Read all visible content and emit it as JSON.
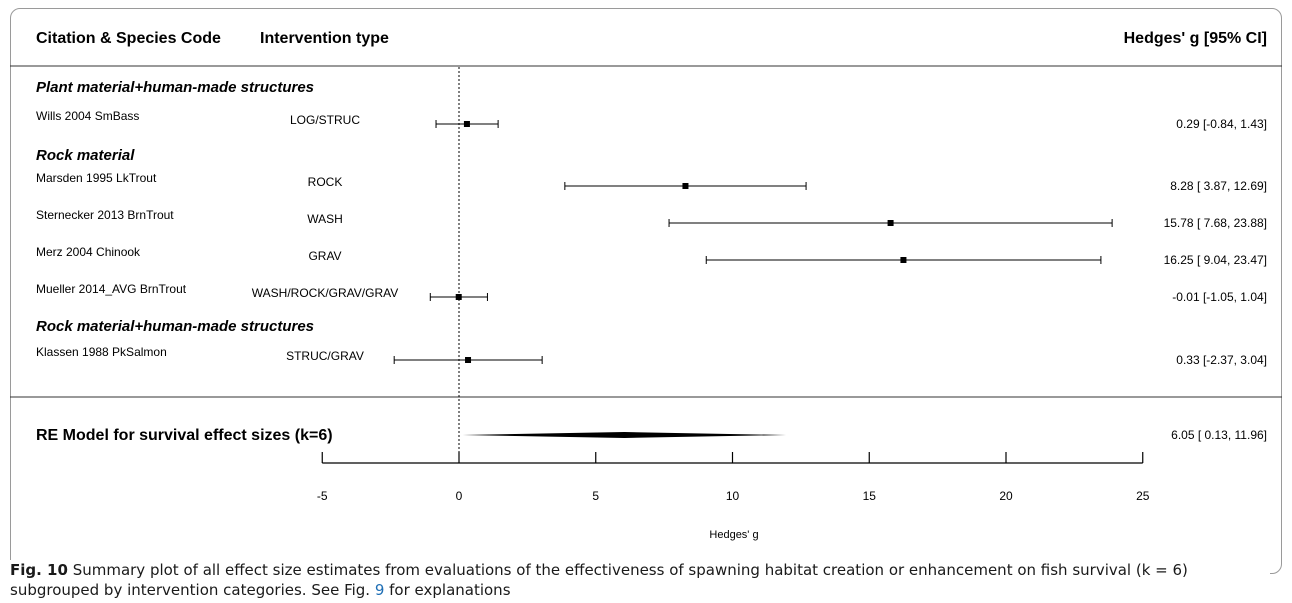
{
  "headers": {
    "study": "Citation & Species Code",
    "intervention": "Intervention type",
    "effect": "Hedges' g [95% CI]"
  },
  "chart_data": {
    "type": "forest",
    "groups": [
      {
        "name": "Plant material+human-made structures",
        "studies": [
          {
            "study": "Wills 2004 SmBass",
            "intervention": "LOG/STRUC",
            "g": 0.29,
            "lo": -0.84,
            "hi": 1.43,
            "label": "0.29 [-0.84,  1.43]"
          }
        ]
      },
      {
        "name": "Rock material",
        "studies": [
          {
            "study": "Marsden 1995 LkTrout",
            "intervention": "ROCK",
            "g": 8.28,
            "lo": 3.87,
            "hi": 12.69,
            "label": "8.28 [ 3.87, 12.69]"
          },
          {
            "study": "Sternecker 2013  BrnTrout",
            "intervention": "WASH",
            "g": 15.78,
            "lo": 7.68,
            "hi": 23.88,
            "label": "15.78 [ 7.68, 23.88]"
          },
          {
            "study": "Merz 2004 Chinook",
            "intervention": "GRAV",
            "g": 16.25,
            "lo": 9.04,
            "hi": 23.47,
            "label": "16.25 [ 9.04, 23.47]"
          },
          {
            "study": "Mueller 2014_AVG BrnTrout",
            "intervention": "WASH/ROCK/GRAV/GRAV",
            "g": -0.01,
            "lo": -1.05,
            "hi": 1.04,
            "label": "-0.01 [-1.05,  1.04]"
          }
        ]
      },
      {
        "name": "Rock material+human-made structures",
        "studies": [
          {
            "study": "Klassen 1988 PkSalmon",
            "intervention": "STRUC/GRAV",
            "g": 0.33,
            "lo": -2.37,
            "hi": 3.04,
            "label": "0.33 [-2.37,  3.04]"
          }
        ]
      }
    ],
    "summary": {
      "label": "RE Model for survival effect sizes (k=6)",
      "g": 6.05,
      "lo": 0.13,
      "hi": 11.96,
      "text": "6.05 [ 0.13, 11.96]"
    },
    "xaxis": {
      "label": "Hedges' g",
      "ticks": [
        -5,
        0,
        5,
        10,
        15,
        20,
        25
      ],
      "range": [
        -5,
        25
      ]
    },
    "reference_line": 0
  },
  "caption": {
    "fig_label": "Fig. 10",
    "text_part1": "  Summary plot of all effect size estimates from evaluations of the effectiveness of spawning habitat creation or enhancement on fish survival (k = 6) subgrouped by intervention categories. See Fig. ",
    "fig_ref": "9",
    "text_part2": " for explanations"
  }
}
